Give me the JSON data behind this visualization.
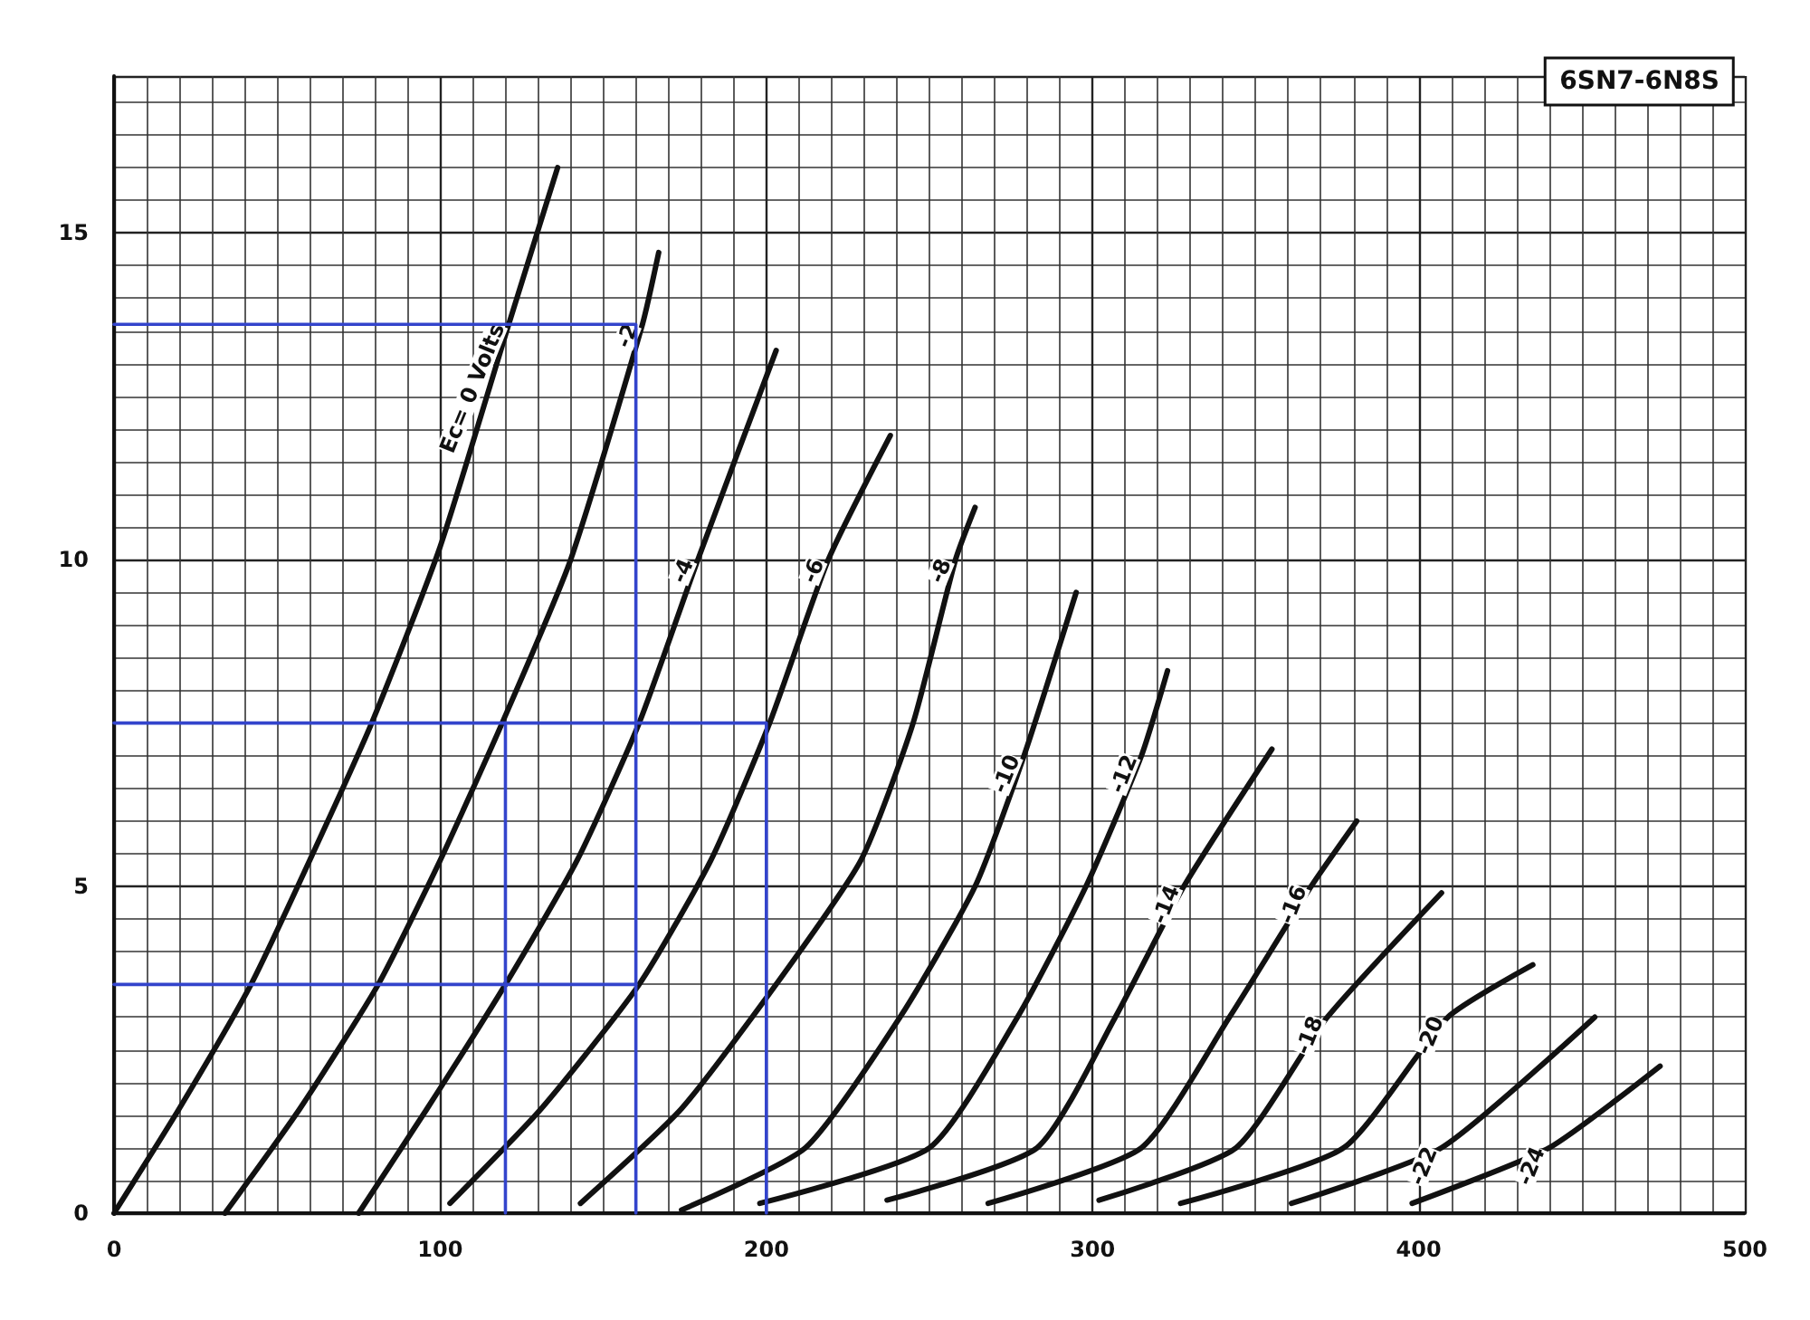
{
  "chart_data": {
    "type": "line",
    "title": "6SN7-6N8S",
    "xlim": [
      0,
      500
    ],
    "xticks": [
      0,
      100,
      200,
      300,
      400,
      500
    ],
    "ylim": [
      0,
      17.4
    ],
    "yticks": [
      0,
      5,
      10,
      15
    ],
    "grid": true,
    "legend": false,
    "marker": "none",
    "line_style": "solid",
    "series": [
      {
        "name": "Ec= 0 Volts",
        "color": "#111111",
        "x": [
          0,
          20,
          42,
          60,
          79,
          100,
          121,
          136
        ],
        "values": [
          0,
          1.6,
          3.5,
          5.4,
          7.5,
          10.2,
          13.6,
          16.0
        ]
      },
      {
        "name": "-2",
        "color": "#111111",
        "x": [
          34,
          57,
          81,
          100,
          119,
          140,
          162,
          167
        ],
        "values": [
          0,
          1.6,
          3.5,
          5.4,
          7.5,
          10.0,
          13.6,
          14.7
        ]
      },
      {
        "name": "-4",
        "color": "#111111",
        "x": [
          75,
          96,
          120,
          142,
          161,
          179,
          203
        ],
        "values": [
          0,
          1.6,
          3.5,
          5.4,
          7.5,
          10.0,
          13.2
        ]
      },
      {
        "name": "-6",
        "color": "#111111",
        "x": [
          103,
          131,
          161,
          183,
          201,
          219,
          238
        ],
        "values": [
          0.15,
          1.6,
          3.5,
          5.4,
          7.5,
          10.0,
          11.9
        ]
      },
      {
        "name": "-8",
        "color": "#111111",
        "x": [
          143,
          174,
          203,
          229,
          245,
          258,
          264
        ],
        "values": [
          0.15,
          1.6,
          3.5,
          5.4,
          7.5,
          10.0,
          10.8
        ]
      },
      {
        "name": "-10",
        "color": "#111111",
        "x": [
          174,
          212,
          241,
          264,
          279,
          295
        ],
        "values": [
          0.05,
          1,
          3,
          5,
          7,
          9.5
        ]
      },
      {
        "name": "-12",
        "color": "#111111",
        "x": [
          198,
          250,
          277,
          298,
          315,
          323
        ],
        "values": [
          0.15,
          1,
          3,
          5,
          7,
          8.3
        ]
      },
      {
        "name": "-14",
        "color": "#111111",
        "x": [
          237,
          283,
          307,
          328,
          355
        ],
        "values": [
          0.2,
          1,
          3,
          5,
          7.1
        ]
      },
      {
        "name": "-16",
        "color": "#111111",
        "x": [
          268,
          315,
          342,
          367,
          381
        ],
        "values": [
          0.15,
          1,
          3,
          5,
          6.0
        ]
      },
      {
        "name": "-18",
        "color": "#111111",
        "x": [
          302,
          344,
          372,
          407
        ],
        "values": [
          0.2,
          1,
          3,
          4.9
        ]
      },
      {
        "name": "-20",
        "color": "#111111",
        "x": [
          327,
          377,
          409,
          435
        ],
        "values": [
          0.15,
          1,
          3,
          3.8
        ]
      },
      {
        "name": "-22",
        "color": "#111111",
        "x": [
          361,
          407,
          454
        ],
        "values": [
          0.15,
          1,
          3.0
        ]
      },
      {
        "name": "-24",
        "color": "#111111",
        "x": [
          398,
          440,
          474
        ],
        "values": [
          0.15,
          1,
          2.25
        ]
      },
      {
        "color": "#3344cc",
        "x": [
          0,
          160,
          160
        ],
        "values": [
          13.6,
          13.6,
          0
        ]
      },
      {
        "color": "#3344cc",
        "x": [
          0,
          200,
          200
        ],
        "values": [
          7.5,
          7.5,
          0
        ]
      },
      {
        "color": "#3344cc",
        "x": [
          120,
          120
        ],
        "values": [
          7.5,
          0
        ]
      },
      {
        "color": "#3344cc",
        "x": [
          0,
          160
        ],
        "values": [
          3.5,
          3.5
        ]
      }
    ]
  }
}
